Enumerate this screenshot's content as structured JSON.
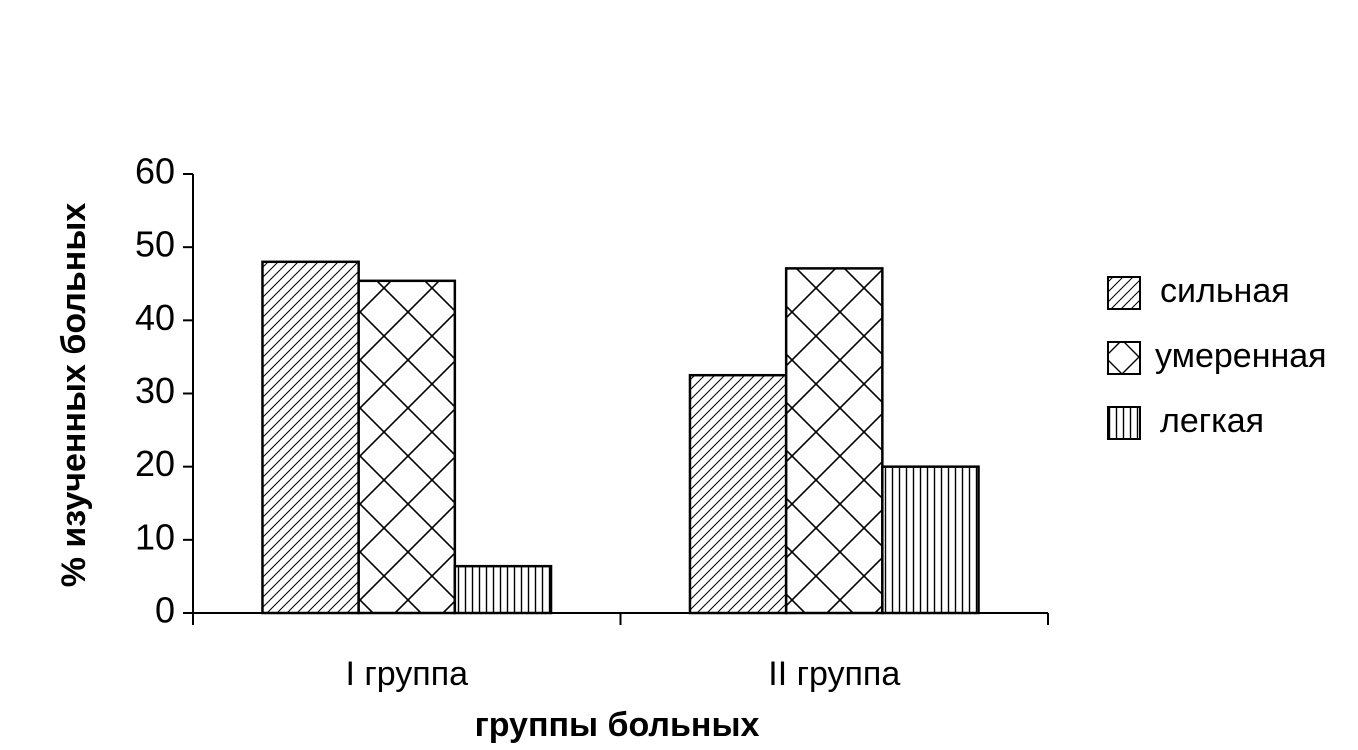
{
  "chart_data": {
    "type": "bar",
    "categories": [
      "I группа",
      "II  группа"
    ],
    "x_label": "группы больных",
    "y_label": "% изученных больных",
    "ylim": [
      0,
      60
    ],
    "yticks": [
      0,
      10,
      20,
      30,
      40,
      50,
      60
    ],
    "series": [
      {
        "name": "сильная",
        "color": "#000000",
        "pattern": "diagonal",
        "values": [
          48,
          32.5
        ]
      },
      {
        "name": "умеренная",
        "color": "#000000",
        "pattern": "cross",
        "values": [
          45.4,
          47.1
        ]
      },
      {
        "name": "легкая",
        "color": "#000000",
        "pattern": "vertical",
        "values": [
          6.4,
          20
        ]
      }
    ],
    "legend": "right"
  }
}
